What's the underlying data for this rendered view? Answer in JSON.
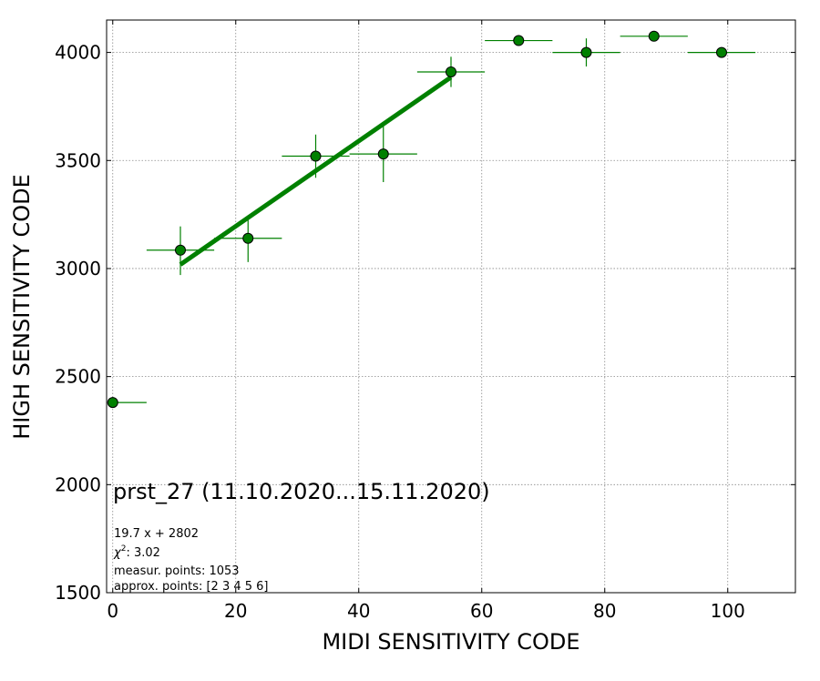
{
  "chart_data": {
    "type": "scatter",
    "title": "prst_27 (11.10.2020...15.11.2020)",
    "xlabel": "MIDI SENSITIVITY CODE",
    "ylabel": "HIGH SENSITIVITY CODE",
    "xlim": [
      -1,
      111
    ],
    "ylim": [
      1500,
      4150
    ],
    "xticks": [
      0,
      20,
      40,
      60,
      80,
      100
    ],
    "yticks": [
      1500,
      2000,
      2500,
      3000,
      3500,
      4000
    ],
    "grid": true,
    "color": "#008000",
    "points": [
      {
        "x": 0,
        "y": 2380,
        "xerr": [
          0,
          5.5
        ],
        "yerr": [
          0,
          0
        ]
      },
      {
        "x": 11,
        "y": 3085,
        "xerr": [
          5.5,
          5.5
        ],
        "yerr": [
          115,
          110
        ]
      },
      {
        "x": 22,
        "y": 3140,
        "xerr": [
          5.5,
          5.5
        ],
        "yerr": [
          110,
          95
        ]
      },
      {
        "x": 33,
        "y": 3520,
        "xerr": [
          5.5,
          5.5
        ],
        "yerr": [
          100,
          100
        ]
      },
      {
        "x": 44,
        "y": 3530,
        "xerr": [
          5.5,
          5.5
        ],
        "yerr": [
          130,
          130
        ]
      },
      {
        "x": 55,
        "y": 3910,
        "xerr": [
          5.5,
          5.5
        ],
        "yerr": [
          70,
          70
        ]
      },
      {
        "x": 66,
        "y": 4055,
        "xerr": [
          5.5,
          5.5
        ],
        "yerr": [
          0,
          0
        ]
      },
      {
        "x": 77,
        "y": 4000,
        "xerr": [
          5.5,
          5.5
        ],
        "yerr": [
          65,
          65
        ]
      },
      {
        "x": 88,
        "y": 4075,
        "xerr": [
          5.5,
          5.5
        ],
        "yerr": [
          0,
          0
        ]
      },
      {
        "x": 99,
        "y": 4000,
        "xerr": [
          5.5,
          5.5
        ],
        "yerr": [
          0,
          0
        ]
      }
    ],
    "fit": {
      "slope": 19.7,
      "intercept": 2802,
      "x_range": [
        11,
        55
      ]
    },
    "annotations": [
      "19.7 x + 2802",
      "χ",
      "2",
      ": 3.02",
      "measur. points: 1053",
      "approx. points: [2 3 4 5 6]"
    ]
  }
}
